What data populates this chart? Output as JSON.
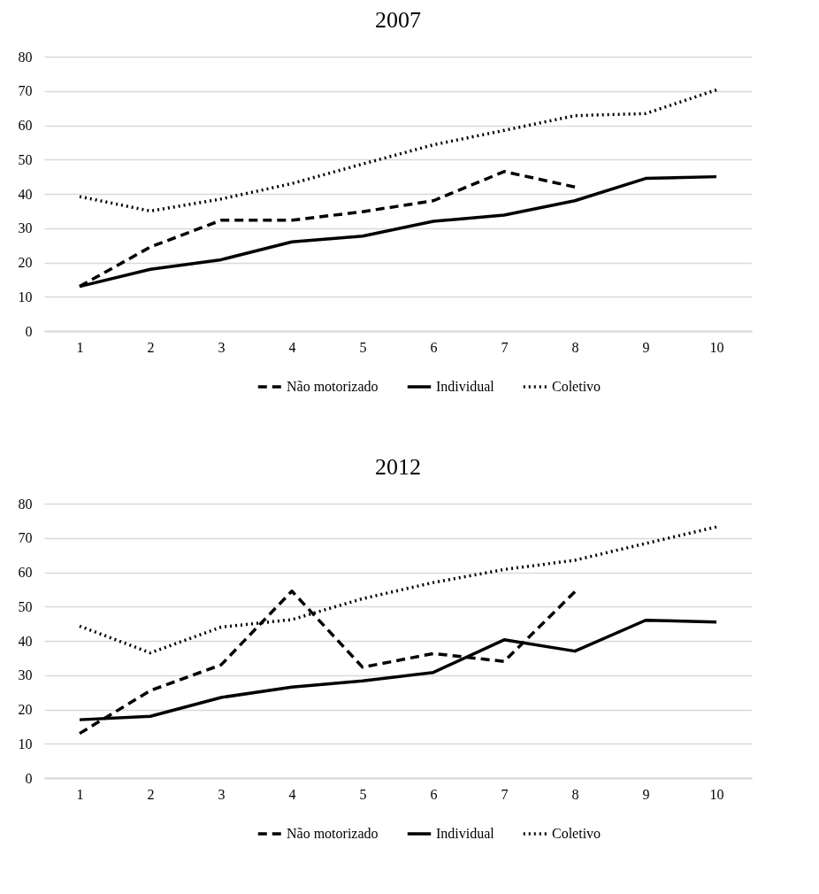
{
  "chart_data": [
    {
      "type": "line",
      "title": "2007",
      "categories": [
        "1",
        "2",
        "3",
        "4",
        "5",
        "6",
        "7",
        "8",
        "9",
        "10"
      ],
      "ylim": [
        0,
        80
      ],
      "yticks": [
        0,
        10,
        20,
        30,
        40,
        50,
        60,
        70,
        80
      ],
      "grid": "y",
      "legend": "bottom",
      "series": [
        {
          "name": "Não motorizado",
          "color": "#000000",
          "line_style": "dashed",
          "values": [
            13,
            24.5,
            32.3,
            32.3,
            34.8,
            38,
            46.5,
            42,
            null,
            null
          ]
        },
        {
          "name": "Individual",
          "color": "#000000",
          "line_style": "solid",
          "values": [
            13,
            18,
            20.8,
            26,
            27.7,
            32,
            33.8,
            38,
            44.5,
            45
          ]
        },
        {
          "name": "Coletivo",
          "color": "#000000",
          "line_style": "dotted",
          "values": [
            39.2,
            35,
            38.5,
            43,
            48.7,
            54.3,
            58.5,
            62.8,
            63.4,
            70.3
          ]
        }
      ]
    },
    {
      "type": "line",
      "title": "2012",
      "categories": [
        "1",
        "2",
        "3",
        "4",
        "5",
        "6",
        "7",
        "8",
        "9",
        "10"
      ],
      "ylim": [
        0,
        80
      ],
      "yticks": [
        0,
        10,
        20,
        30,
        40,
        50,
        60,
        70,
        80
      ],
      "grid": "y",
      "legend": "bottom",
      "series": [
        {
          "name": "Não motorizado",
          "color": "#000000",
          "line_style": "dashed",
          "values": [
            13,
            25.5,
            33,
            54.5,
            32.3,
            36.3,
            34,
            54.3,
            null,
            null
          ]
        },
        {
          "name": "Individual",
          "color": "#000000",
          "line_style": "solid",
          "values": [
            17,
            18,
            23.5,
            26.5,
            28.3,
            30.8,
            40.3,
            37,
            46,
            45.5
          ]
        },
        {
          "name": "Coletivo",
          "color": "#000000",
          "line_style": "dotted",
          "values": [
            44.3,
            36.5,
            44,
            46.2,
            52.3,
            57,
            60.8,
            63.5,
            68.4,
            73.2
          ]
        }
      ]
    }
  ]
}
